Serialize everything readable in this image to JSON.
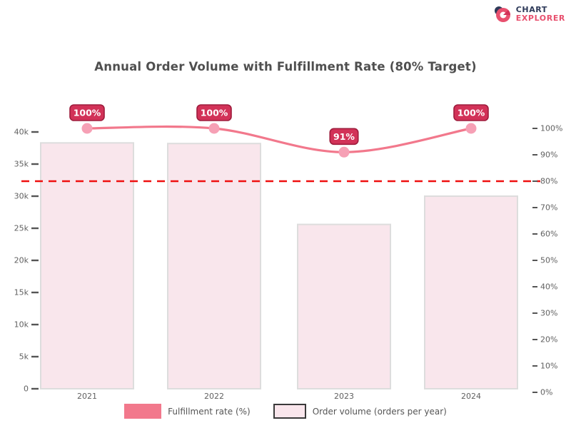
{
  "brand": {
    "line1": "CHART",
    "line2": "EXPLORER"
  },
  "colors": {
    "background": "#ffffff",
    "bar_fill": "#f9e6ec",
    "bar_border": "#dddddd",
    "line": "#f2788c",
    "marker": "#f6a0b5",
    "label_box_fill": "#d23258",
    "label_box_border": "#9e1c3c",
    "label_text": "#ffffff",
    "reference_line": "#ef1010",
    "axis_text": "#616161",
    "tick_mark": "#555555",
    "title_text": "#4f4f4f",
    "brand_dark": "#2e3a59",
    "brand_pink": "#e8506e"
  },
  "chart_data": {
    "type": "bar+line",
    "title": "Annual Order Volume with Fulfillment Rate (80% Target)",
    "categories": [
      "2021",
      "2022",
      "2023",
      "2024"
    ],
    "series": [
      {
        "name": "Order volume",
        "type": "bar",
        "axis": "left",
        "values": [
          38300,
          38200,
          25600,
          30000
        ]
      },
      {
        "name": "Fulfillment rate",
        "type": "line",
        "axis": "right",
        "unit": "%",
        "values": [
          100,
          100,
          91,
          100
        ],
        "point_labels": [
          "100%",
          "100%",
          "91%",
          "100%"
        ]
      }
    ],
    "reference_line": {
      "axis": "right",
      "value": 80,
      "style": "dashed"
    },
    "left_axis": {
      "range": [
        0,
        40000
      ],
      "tick_step": 5000,
      "tick_labels": [
        "40k",
        "35k",
        "30k",
        "25k",
        "20k",
        "15k",
        "10k",
        "5k",
        "0"
      ]
    },
    "right_axis": {
      "range": [
        0,
        100
      ],
      "tick_step": 10,
      "tick_labels": [
        "100%",
        "90%",
        "80%",
        "70%",
        "60%",
        "50%",
        "40%",
        "30%",
        "20%",
        "10%",
        "0%"
      ]
    },
    "legend": [
      {
        "label": "Fulfillment rate (%)",
        "swatch": "line"
      },
      {
        "label": "Order volume (orders per year)",
        "swatch": "bar"
      }
    ],
    "grid": false,
    "legend_position": "bottom"
  }
}
